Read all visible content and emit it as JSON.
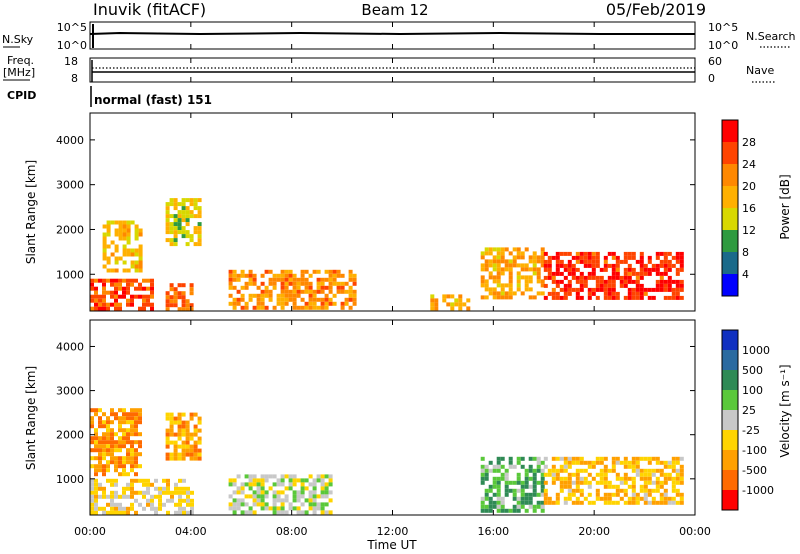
{
  "header": {
    "station": "Inuvik (fitACF)",
    "beam": "Beam 12",
    "date": "05/Feb/2019"
  },
  "strips": {
    "nsky_label": "N.Sky",
    "nsearch_label": "N.Search",
    "nsky_ticks": [
      "10^5",
      "10^0"
    ],
    "nsearch_ticks": [
      "10^5",
      "10^0"
    ],
    "freq_label": "Freq.",
    "freq_unit": "[MHz]",
    "freq_ticks": [
      "18",
      "8"
    ],
    "nave_label": "Nave",
    "nave_ticks": [
      "60",
      "0"
    ],
    "cpid_label": "CPID",
    "cpid_value": "normal (fast) 151"
  },
  "axes": {
    "ylabel": "Slant Range [km]",
    "xlabel": "Time UT",
    "x_ticks": [
      "00:00",
      "04:00",
      "08:00",
      "12:00",
      "16:00",
      "20:00",
      "00:00"
    ],
    "y_ticks": [
      "4000",
      "3000",
      "2000",
      "1000"
    ]
  },
  "colorbars": {
    "power": {
      "label": "Power [dB]",
      "ticks": [
        "28",
        "24",
        "20",
        "16",
        "12",
        "8",
        "4"
      ],
      "colors": [
        "#ff0000",
        "#ff4400",
        "#ff8800",
        "#ffb000",
        "#d8d800",
        "#2f9a40",
        "#1a6a8a",
        "#0000ff"
      ]
    },
    "velocity": {
      "label": "Velocity [m s⁻¹]",
      "ticks": [
        "1000",
        "500",
        "100",
        "25",
        "-25",
        "-100",
        "-500",
        "-1000"
      ],
      "colors": [
        "#1030c0",
        "#2a6aa0",
        "#2f8a55",
        "#5ac83a",
        "#c8c8c8",
        "#ffd400",
        "#ffa000",
        "#ff6a00",
        "#ff0000"
      ]
    }
  },
  "chart_data": [
    {
      "type": "heatmap",
      "title": "Beam 12",
      "xlabel": "Time UT",
      "ylabel": "Slant Range [km]",
      "xlim": [
        0,
        24
      ],
      "ylim": [
        180,
        4600
      ],
      "colorbar": "Power [dB]",
      "clim": [
        0,
        30
      ],
      "echo_regions": [
        {
          "t0": 0.0,
          "t1": 2.5,
          "r0": 250,
          "r1": 900,
          "value": 24
        },
        {
          "t0": 0.5,
          "t1": 2.0,
          "r0": 1100,
          "r1": 2200,
          "value": 16
        },
        {
          "t0": 3.0,
          "t1": 4.3,
          "r0": 1700,
          "r1": 2700,
          "value": 14
        },
        {
          "t0": 3.0,
          "t1": 4.0,
          "r0": 250,
          "r1": 800,
          "value": 22
        },
        {
          "t0": 5.5,
          "t1": 10.5,
          "r0": 250,
          "r1": 1100,
          "value": 20
        },
        {
          "t0": 13.5,
          "t1": 15.0,
          "r0": 250,
          "r1": 550,
          "value": 18
        },
        {
          "t0": 15.5,
          "t1": 18.0,
          "r0": 500,
          "r1": 1600,
          "value": 18
        },
        {
          "t0": 18.0,
          "t1": 23.5,
          "r0": 500,
          "r1": 1500,
          "value": 26
        }
      ]
    },
    {
      "type": "heatmap",
      "xlabel": "Time UT",
      "ylabel": "Slant Range [km]",
      "xlim": [
        0,
        24
      ],
      "ylim": [
        180,
        4600
      ],
      "colorbar": "Velocity [m s⁻¹]",
      "clim": [
        -1000,
        1000
      ],
      "echo_regions": [
        {
          "t0": 0.0,
          "t1": 2.0,
          "r0": 1100,
          "r1": 2600,
          "value": -500
        },
        {
          "t0": 3.0,
          "t1": 4.3,
          "r0": 1500,
          "r1": 2500,
          "value": -400
        },
        {
          "t0": 0.0,
          "t1": 4.0,
          "r0": 250,
          "r1": 1000,
          "value": -150
        },
        {
          "t0": 5.5,
          "t1": 9.5,
          "r0": 250,
          "r1": 1100,
          "value": 20
        },
        {
          "t0": 15.5,
          "t1": 18.0,
          "r0": 300,
          "r1": 1500,
          "value": 300
        },
        {
          "t0": 18.0,
          "t1": 23.5,
          "r0": 500,
          "r1": 1500,
          "value": -300
        }
      ]
    }
  ]
}
